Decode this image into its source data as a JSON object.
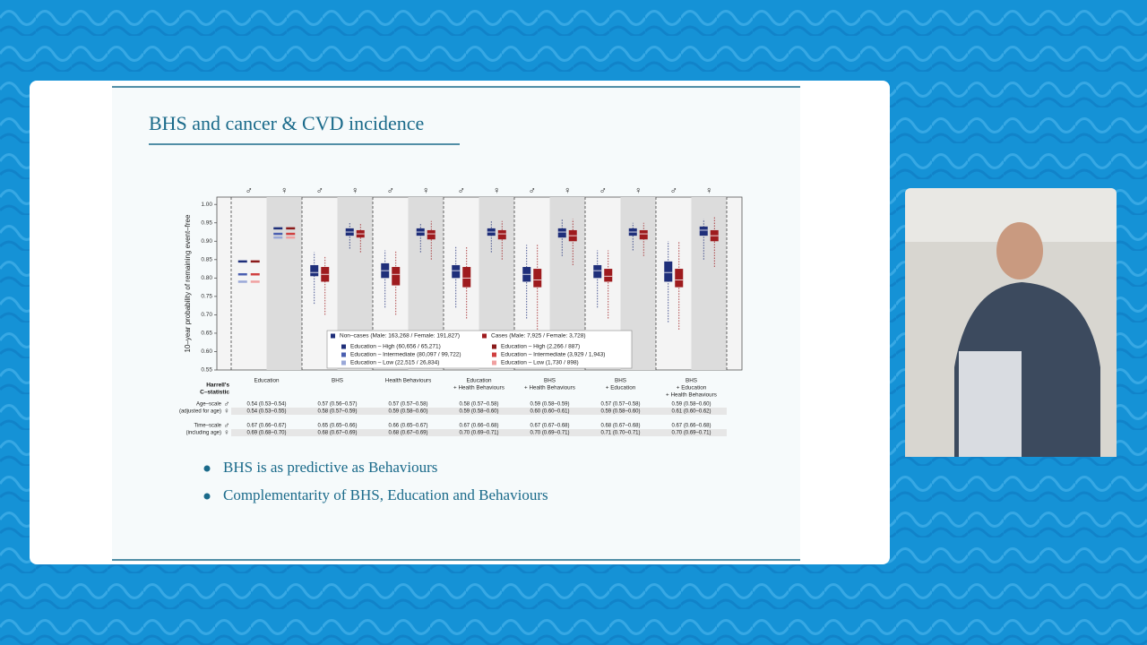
{
  "slide": {
    "title": "BHS and cancer & CVD incidence",
    "bullets": [
      "BHS is as predictive as Behaviours",
      "Complementarity of BHS, Education and Behaviours"
    ]
  },
  "chart_data": {
    "type": "box",
    "y_label": "10–year probability of remaining event–free",
    "ylim": [
      0.55,
      1.02
    ],
    "yticks": [
      0.55,
      {
        "value": 0.6,
        "label": "0.60"
      },
      0.65,
      {
        "value": 0.7,
        "label": "0.70"
      },
      0.75,
      {
        "value": 0.8,
        "label": "0.80"
      },
      0.85,
      {
        "value": 0.9,
        "label": "0.90"
      },
      0.95,
      {
        "value": 1,
        "label": "1.00"
      }
    ],
    "sex_symbols": [
      "♂",
      "♀"
    ],
    "colors": {
      "noncase": "#1f2f7a",
      "case": "#9e1b1e",
      "noncase_levels": [
        "#1f2f7a",
        "#4a5fb0",
        "#9aa8d8"
      ],
      "case_levels": [
        "#8b1a1a",
        "#d04040",
        "#f0a0a0"
      ]
    },
    "legend": {
      "noncase": "Non–cases (Male: 163,268 / Female: 191,827)",
      "case": "Cases (Male: 7,925 / Female: 3,728)",
      "noncase_levels": [
        "Education – High (60,656 / 65,271)",
        "Education – Intermediate (80,097 / 99,722)",
        "Education – Low (22,515 / 26,834)"
      ],
      "case_levels": [
        "Education – High (2,266 / 887)",
        "Education – Intermediate (3,929 / 1,943)",
        "Education – Low (1,730 / 898)"
      ]
    },
    "panels": [
      {
        "label": [
          "Education"
        ],
        "male": {
          "noncase_levels": [
            0.845,
            0.81,
            0.79
          ],
          "case_levels": [
            0.845,
            0.81,
            0.79
          ]
        },
        "female": {
          "noncase_levels": [
            0.935,
            0.92,
            0.91
          ],
          "case_levels": [
            0.935,
            0.92,
            0.91
          ]
        }
      },
      {
        "label": [
          "BHS"
        ],
        "male": {
          "noncase": [
            0.73,
            0.805,
            0.815,
            0.835,
            0.87
          ],
          "case": [
            0.7,
            0.79,
            0.81,
            0.83,
            0.86
          ]
        },
        "female": {
          "noncase": [
            0.88,
            0.915,
            0.925,
            0.935,
            0.95
          ],
          "case": [
            0.87,
            0.91,
            0.92,
            0.93,
            0.95
          ]
        }
      },
      {
        "label": [
          "Health Behaviours"
        ],
        "male": {
          "noncase": [
            0.72,
            0.8,
            0.82,
            0.84,
            0.875
          ],
          "case": [
            0.7,
            0.78,
            0.81,
            0.83,
            0.875
          ]
        },
        "female": {
          "noncase": [
            0.87,
            0.915,
            0.925,
            0.935,
            0.95
          ],
          "case": [
            0.85,
            0.905,
            0.92,
            0.93,
            0.955
          ]
        }
      },
      {
        "label": [
          "Education",
          "+ Health Behaviours"
        ],
        "male": {
          "noncase": [
            0.72,
            0.8,
            0.82,
            0.835,
            0.885
          ],
          "case": [
            0.69,
            0.775,
            0.8,
            0.83,
            0.885
          ]
        },
        "female": {
          "noncase": [
            0.87,
            0.915,
            0.925,
            0.935,
            0.955
          ],
          "case": [
            0.85,
            0.905,
            0.92,
            0.93,
            0.955
          ]
        }
      },
      {
        "label": [
          "BHS",
          "+ Health Behaviours"
        ],
        "male": {
          "noncase": [
            0.69,
            0.79,
            0.81,
            0.83,
            0.89
          ],
          "case": [
            0.66,
            0.775,
            0.795,
            0.825,
            0.89
          ]
        },
        "female": {
          "noncase": [
            0.86,
            0.91,
            0.925,
            0.935,
            0.96
          ],
          "case": [
            0.835,
            0.9,
            0.915,
            0.93,
            0.96
          ]
        }
      },
      {
        "label": [
          "BHS",
          "+ Education"
        ],
        "male": {
          "noncase": [
            0.72,
            0.8,
            0.82,
            0.835,
            0.875
          ],
          "case": [
            0.69,
            0.79,
            0.805,
            0.825,
            0.875
          ]
        },
        "female": {
          "noncase": [
            0.875,
            0.915,
            0.925,
            0.935,
            0.95
          ],
          "case": [
            0.86,
            0.905,
            0.92,
            0.93,
            0.95
          ]
        }
      },
      {
        "label": [
          "BHS",
          "+ Education",
          "+ Health Behaviours"
        ],
        "male": {
          "noncase": [
            0.68,
            0.79,
            0.815,
            0.845,
            0.9
          ],
          "case": [
            0.66,
            0.775,
            0.795,
            0.825,
            0.9
          ]
        },
        "female": {
          "noncase": [
            0.85,
            0.915,
            0.93,
            0.94,
            0.96
          ],
          "case": [
            0.83,
            0.9,
            0.915,
            0.93,
            0.965
          ]
        }
      }
    ],
    "table": {
      "title": [
        "Harrell's",
        "C–statistic"
      ],
      "rows": [
        {
          "label": [
            "Age–scale",
            "(adjusted for age)"
          ],
          "male": [
            "0.54 (0.53–0.54)",
            "0.57 (0.56–0.57)",
            "0.57 (0.57–0.58)",
            "0.58 (0.57–0.58)",
            "0.59 (0.58–0.59)",
            "0.57 (0.57–0.58)",
            "0.59 (0.58–0.60)"
          ],
          "female": [
            "0.54 (0.53–0.55)",
            "0.58 (0.57–0.59)",
            "0.59 (0.58–0.60)",
            "0.59 (0.58–0.60)",
            "0.60 (0.60–0.61)",
            "0.59 (0.58–0.60)",
            "0.61 (0.60–0.62)"
          ]
        },
        {
          "label": [
            "Time–scale",
            "(including age)"
          ],
          "male": [
            "0.67 (0.66–0.67)",
            "0.65 (0.65–0.66)",
            "0.66 (0.65–0.67)",
            "0.67 (0.66–0.68)",
            "0.67 (0.67–0.68)",
            "0.68 (0.67–0.68)",
            "0.67 (0.66–0.68)"
          ],
          "female": [
            "0.69 (0.68–0.70)",
            "0.68 (0.67–0.69)",
            "0.68 (0.67–0.69)",
            "0.70 (0.69–0.71)",
            "0.70 (0.69–0.71)",
            "0.71 (0.70–0.71)",
            "0.70 (0.69–0.71)"
          ]
        }
      ]
    }
  }
}
